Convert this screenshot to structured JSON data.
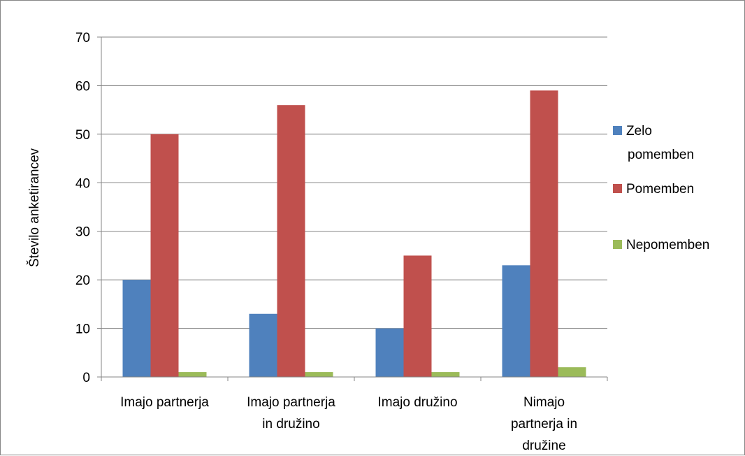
{
  "chart_data": {
    "type": "bar",
    "title": "",
    "xlabel": "",
    "ylabel": "Število anketirancev",
    "ylim": [
      0,
      70
    ],
    "y_ticks": [
      0,
      10,
      20,
      30,
      40,
      50,
      60,
      70
    ],
    "grid": true,
    "legend_position": "right",
    "categories": [
      [
        "Imajo partnerja"
      ],
      [
        "Imajo partnerja",
        "in družino"
      ],
      [
        "Imajo družino"
      ],
      [
        "Nimajo",
        "partnerja in",
        "družine"
      ]
    ],
    "series": [
      {
        "name": [
          "Zelo",
          "pomemben"
        ],
        "color": "#4F81BD",
        "values": [
          20,
          13,
          10,
          23
        ]
      },
      {
        "name": [
          "Pomemben"
        ],
        "color": "#C0504D",
        "values": [
          50,
          56,
          25,
          59
        ]
      },
      {
        "name": [
          "Nepomemben"
        ],
        "color": "#9BBB59",
        "values": [
          1,
          1,
          1,
          2
        ]
      }
    ]
  }
}
